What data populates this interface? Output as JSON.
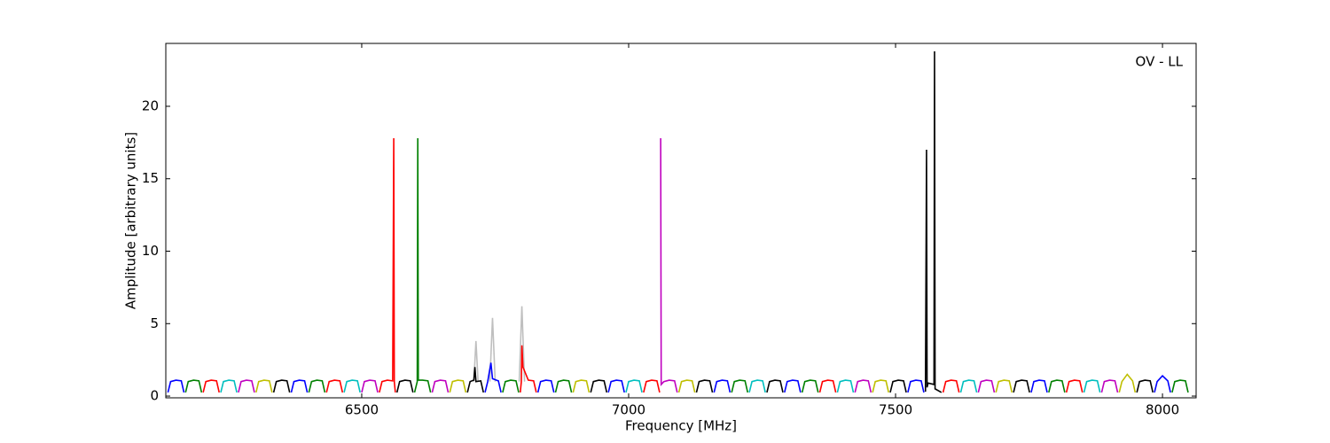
{
  "chart_data": {
    "type": "line",
    "xlabel": "Frequency [MHz]",
    "ylabel": "Amplitude [arbitrary units]",
    "annotation": "OV - LL",
    "xlim": [
      6133,
      8063
    ],
    "ylim": [
      -0.12,
      24.34
    ],
    "xticks": [
      6500,
      7000,
      7500,
      8000
    ],
    "yticks": [
      0,
      5,
      10,
      15,
      20
    ],
    "series": [
      {
        "color": "#bfbfbf",
        "x": [
          6710,
          6714,
          6718,
          6719,
          6740,
          6745,
          6750,
          6751,
          6795,
          6800,
          6805
        ],
        "values": [
          1.0,
          3.8,
          1.0,
          null,
          1.0,
          5.4,
          1.0,
          null,
          1.0,
          6.2,
          1.0
        ]
      },
      {
        "color": "#0000ff",
        "x": [
          6137,
          6142,
          6152,
          6162,
          6167
        ],
        "values": [
          0.25,
          1.0,
          1.1,
          1.05,
          0.25
        ]
      },
      {
        "color": "#008000",
        "x": [
          6170,
          6175,
          6185,
          6195,
          6200
        ],
        "values": [
          0.25,
          1.0,
          1.1,
          1.05,
          0.25
        ]
      },
      {
        "color": "#ff0000",
        "x": [
          6203,
          6208,
          6218,
          6228,
          6233
        ],
        "values": [
          0.25,
          1.0,
          1.1,
          1.05,
          0.25
        ]
      },
      {
        "color": "#00bfbf",
        "x": [
          6236,
          6241,
          6251,
          6261,
          6266
        ],
        "values": [
          0.25,
          1.0,
          1.1,
          1.05,
          0.25
        ]
      },
      {
        "color": "#bf00bf",
        "x": [
          6269,
          6274,
          6284,
          6294,
          6299
        ],
        "values": [
          0.25,
          1.0,
          1.1,
          1.05,
          0.25
        ]
      },
      {
        "color": "#bfbf00",
        "x": [
          6302,
          6307,
          6317,
          6327,
          6332
        ],
        "values": [
          0.25,
          1.0,
          1.1,
          1.05,
          0.25
        ]
      },
      {
        "color": "#000000",
        "x": [
          6335,
          6340,
          6350,
          6360,
          6365
        ],
        "values": [
          0.25,
          1.0,
          1.1,
          1.05,
          0.25
        ]
      },
      {
        "color": "#0000ff",
        "x": [
          6368,
          6373,
          6383,
          6393,
          6398
        ],
        "values": [
          0.25,
          1.0,
          1.1,
          1.05,
          0.25
        ]
      },
      {
        "color": "#008000",
        "x": [
          6401,
          6406,
          6416,
          6426,
          6431
        ],
        "values": [
          0.25,
          1.0,
          1.1,
          1.05,
          0.25
        ]
      },
      {
        "color": "#ff0000",
        "x": [
          6434,
          6439,
          6449,
          6459,
          6464
        ],
        "values": [
          0.25,
          1.0,
          1.1,
          1.05,
          0.25
        ]
      },
      {
        "color": "#00bfbf",
        "x": [
          6467,
          6472,
          6482,
          6492,
          6497
        ],
        "values": [
          0.25,
          1.0,
          1.1,
          1.05,
          0.25
        ]
      },
      {
        "color": "#bf00bf",
        "x": [
          6500,
          6505,
          6515,
          6525,
          6530
        ],
        "values": [
          0.25,
          1.0,
          1.1,
          1.05,
          0.25
        ]
      },
      {
        "color": "#ff0000",
        "x": [
          6533,
          6538,
          6548,
          6558,
          6560,
          6561,
          6563
        ],
        "values": [
          0.25,
          1.0,
          1.1,
          1.05,
          17.8,
          1.0,
          0.25
        ]
      },
      {
        "color": "#000000",
        "x": [
          6566,
          6571,
          6581,
          6591,
          6596
        ],
        "values": [
          0.25,
          1.0,
          1.1,
          1.05,
          0.25
        ]
      },
      {
        "color": "#008000",
        "x": [
          6599,
          6604,
          6605,
          6606,
          6614,
          6624,
          6629
        ],
        "values": [
          0.25,
          1.0,
          17.8,
          1.1,
          1.1,
          1.05,
          0.25
        ]
      },
      {
        "color": "#bf00bf",
        "x": [
          6632,
          6637,
          6647,
          6657,
          6662
        ],
        "values": [
          0.25,
          1.0,
          1.1,
          1.05,
          0.25
        ]
      },
      {
        "color": "#bfbf00",
        "x": [
          6665,
          6670,
          6680,
          6690,
          6695
        ],
        "values": [
          0.25,
          1.0,
          1.1,
          1.05,
          0.25
        ]
      },
      {
        "color": "#000000",
        "x": [
          6698,
          6703,
          6710,
          6712,
          6714,
          6723,
          6728
        ],
        "values": [
          0.25,
          1.0,
          1.1,
          2.0,
          1.0,
          1.05,
          0.25
        ]
      },
      {
        "color": "#0000ff",
        "x": [
          6731,
          6736,
          6742,
          6745,
          6752,
          6756,
          6761
        ],
        "values": [
          0.25,
          1.0,
          2.3,
          1.2,
          1.1,
          1.05,
          0.25
        ]
      },
      {
        "color": "#008000",
        "x": [
          6764,
          6769,
          6779,
          6789,
          6794
        ],
        "values": [
          0.25,
          1.0,
          1.1,
          1.05,
          0.25
        ]
      },
      {
        "color": "#ff0000",
        "x": [
          6797,
          6799,
          6800,
          6802,
          6812,
          6822,
          6827
        ],
        "values": [
          0.25,
          1.0,
          3.5,
          2.0,
          1.1,
          1.05,
          0.25
        ]
      },
      {
        "color": "#0000ff",
        "x": [
          6830,
          6835,
          6845,
          6855,
          6860
        ],
        "values": [
          0.25,
          1.0,
          1.1,
          1.05,
          0.25
        ]
      },
      {
        "color": "#008000",
        "x": [
          6863,
          6868,
          6878,
          6888,
          6893
        ],
        "values": [
          0.25,
          1.0,
          1.1,
          1.05,
          0.25
        ]
      },
      {
        "color": "#bfbf00",
        "x": [
          6896,
          6901,
          6911,
          6921,
          6926
        ],
        "values": [
          0.25,
          1.0,
          1.1,
          1.05,
          0.25
        ]
      },
      {
        "color": "#000000",
        "x": [
          6929,
          6934,
          6944,
          6954,
          6959
        ],
        "values": [
          0.25,
          1.0,
          1.1,
          1.05,
          0.25
        ]
      },
      {
        "color": "#0000ff",
        "x": [
          6962,
          6967,
          6977,
          6987,
          6992
        ],
        "values": [
          0.25,
          1.0,
          1.1,
          1.05,
          0.25
        ]
      },
      {
        "color": "#00bfbf",
        "x": [
          6995,
          7000,
          7010,
          7020,
          7025
        ],
        "values": [
          0.25,
          1.0,
          1.1,
          1.05,
          0.25
        ]
      },
      {
        "color": "#ff0000",
        "x": [
          7028,
          7033,
          7043,
          7053,
          7058
        ],
        "values": [
          0.25,
          1.0,
          1.1,
          1.05,
          0.25
        ]
      },
      {
        "color": "#bf00bf",
        "x": [
          7060,
          7061,
          7066,
          7076,
          7086,
          7091
        ],
        "values": [
          17.8,
          0.8,
          1.0,
          1.1,
          1.05,
          0.25
        ]
      },
      {
        "color": "#bfbf00",
        "x": [
          7094,
          7099,
          7109,
          7119,
          7124
        ],
        "values": [
          0.25,
          1.0,
          1.1,
          1.05,
          0.25
        ]
      },
      {
        "color": "#000000",
        "x": [
          7127,
          7132,
          7142,
          7152,
          7157
        ],
        "values": [
          0.25,
          1.0,
          1.1,
          1.05,
          0.25
        ]
      },
      {
        "color": "#0000ff",
        "x": [
          7160,
          7165,
          7175,
          7185,
          7190
        ],
        "values": [
          0.25,
          1.0,
          1.1,
          1.05,
          0.25
        ]
      },
      {
        "color": "#008000",
        "x": [
          7193,
          7198,
          7208,
          7218,
          7223
        ],
        "values": [
          0.25,
          1.0,
          1.1,
          1.05,
          0.25
        ]
      },
      {
        "color": "#00bfbf",
        "x": [
          7226,
          7231,
          7241,
          7251,
          7256
        ],
        "values": [
          0.25,
          1.0,
          1.1,
          1.05,
          0.25
        ]
      },
      {
        "color": "#000000",
        "x": [
          7259,
          7264,
          7274,
          7284,
          7289
        ],
        "values": [
          0.25,
          1.0,
          1.1,
          1.05,
          0.25
        ]
      },
      {
        "color": "#0000ff",
        "x": [
          7292,
          7297,
          7307,
          7317,
          7322
        ],
        "values": [
          0.25,
          1.0,
          1.1,
          1.05,
          0.25
        ]
      },
      {
        "color": "#008000",
        "x": [
          7325,
          7330,
          7340,
          7350,
          7355
        ],
        "values": [
          0.25,
          1.0,
          1.1,
          1.05,
          0.25
        ]
      },
      {
        "color": "#ff0000",
        "x": [
          7358,
          7363,
          7373,
          7383,
          7388
        ],
        "values": [
          0.25,
          1.0,
          1.1,
          1.05,
          0.25
        ]
      },
      {
        "color": "#00bfbf",
        "x": [
          7391,
          7396,
          7406,
          7416,
          7421
        ],
        "values": [
          0.25,
          1.0,
          1.1,
          1.05,
          0.25
        ]
      },
      {
        "color": "#bf00bf",
        "x": [
          7424,
          7429,
          7439,
          7449,
          7454
        ],
        "values": [
          0.25,
          1.0,
          1.1,
          1.05,
          0.25
        ]
      },
      {
        "color": "#bfbf00",
        "x": [
          7457,
          7462,
          7472,
          7482,
          7487
        ],
        "values": [
          0.25,
          1.0,
          1.1,
          1.05,
          0.25
        ]
      },
      {
        "color": "#000000",
        "x": [
          7490,
          7495,
          7505,
          7515,
          7520
        ],
        "values": [
          0.25,
          1.0,
          1.1,
          1.05,
          0.25
        ]
      },
      {
        "color": "#0000ff",
        "x": [
          7523,
          7528,
          7538,
          7548,
          7553
        ],
        "values": [
          0.25,
          1.0,
          1.1,
          1.05,
          0.25
        ]
      },
      {
        "color": "#000000",
        "x": [
          7556,
          7558,
          7559,
          7561,
          7572,
          7573,
          7574,
          7586
        ],
        "values": [
          0.3,
          17,
          0.6,
          0.9,
          0.8,
          23.8,
          0.5,
          0.25
        ]
      },
      {
        "color": "#ff0000",
        "x": [
          7589,
          7594,
          7604,
          7614,
          7619
        ],
        "values": [
          0.25,
          1.0,
          1.1,
          1.05,
          0.25
        ]
      },
      {
        "color": "#00bfbf",
        "x": [
          7622,
          7627,
          7637,
          7647,
          7652
        ],
        "values": [
          0.25,
          1.0,
          1.1,
          1.05,
          0.25
        ]
      },
      {
        "color": "#bf00bf",
        "x": [
          7655,
          7660,
          7670,
          7680,
          7685
        ],
        "values": [
          0.25,
          1.0,
          1.1,
          1.05,
          0.25
        ]
      },
      {
        "color": "#bfbf00",
        "x": [
          7688,
          7693,
          7703,
          7713,
          7718
        ],
        "values": [
          0.25,
          1.0,
          1.1,
          1.05,
          0.25
        ]
      },
      {
        "color": "#000000",
        "x": [
          7721,
          7726,
          7736,
          7746,
          7751
        ],
        "values": [
          0.25,
          1.0,
          1.1,
          1.05,
          0.25
        ]
      },
      {
        "color": "#0000ff",
        "x": [
          7754,
          7759,
          7769,
          7779,
          7784
        ],
        "values": [
          0.25,
          1.0,
          1.1,
          1.05,
          0.25
        ]
      },
      {
        "color": "#008000",
        "x": [
          7787,
          7792,
          7802,
          7812,
          7817
        ],
        "values": [
          0.25,
          1.0,
          1.1,
          1.05,
          0.25
        ]
      },
      {
        "color": "#ff0000",
        "x": [
          7820,
          7825,
          7835,
          7845,
          7850
        ],
        "values": [
          0.25,
          1.0,
          1.1,
          1.05,
          0.25
        ]
      },
      {
        "color": "#00bfbf",
        "x": [
          7853,
          7858,
          7868,
          7878,
          7883
        ],
        "values": [
          0.25,
          1.0,
          1.1,
          1.05,
          0.25
        ]
      },
      {
        "color": "#bf00bf",
        "x": [
          7886,
          7891,
          7901,
          7911,
          7916
        ],
        "values": [
          0.25,
          1.0,
          1.1,
          1.05,
          0.25
        ]
      },
      {
        "color": "#bfbf00",
        "x": [
          7919,
          7924,
          7934,
          7944,
          7949
        ],
        "values": [
          0.25,
          1.0,
          1.5,
          1.05,
          0.25
        ]
      },
      {
        "color": "#000000",
        "x": [
          7952,
          7957,
          7967,
          7977,
          7982
        ],
        "values": [
          0.25,
          1.0,
          1.1,
          1.05,
          0.25
        ]
      },
      {
        "color": "#0000ff",
        "x": [
          7985,
          7990,
          8000,
          8010,
          8015
        ],
        "values": [
          0.25,
          1.0,
          1.4,
          1.05,
          0.25
        ]
      },
      {
        "color": "#008000",
        "x": [
          8018,
          8023,
          8033,
          8043,
          8048
        ],
        "values": [
          0.25,
          1.0,
          1.1,
          1.05,
          0.25
        ]
      }
    ]
  }
}
